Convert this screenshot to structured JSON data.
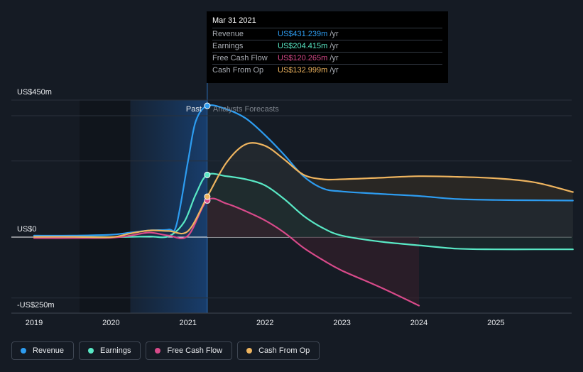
{
  "chart_data": {
    "type": "line",
    "title": "",
    "y_unit": "US$m",
    "ylim": [
      -250,
      450
    ],
    "xlim": [
      2019.0,
      2026.0
    ],
    "y_tick_labels": [
      {
        "value": 450,
        "label": "US$450m"
      },
      {
        "value": 0,
        "label": "US$0"
      },
      {
        "value": -250,
        "label": "-US$250m"
      }
    ],
    "x_ticks": [
      2019,
      2020,
      2021,
      2022,
      2023,
      2024,
      2025
    ],
    "past_region": {
      "start": 2020.25,
      "end": 2021.25
    },
    "past_label": "Past",
    "forecast_label": "Analysts Forecasts",
    "grid": true,
    "legend_position": "bottom",
    "series": [
      {
        "name": "Revenue",
        "color": "#2d9cf0",
        "points": [
          [
            2019.0,
            5
          ],
          [
            2019.5,
            5
          ],
          [
            2020.0,
            8
          ],
          [
            2020.25,
            15
          ],
          [
            2020.5,
            22
          ],
          [
            2020.75,
            25
          ],
          [
            2020.85,
            40
          ],
          [
            2021.0,
            250
          ],
          [
            2021.1,
            380
          ],
          [
            2021.25,
            431.239
          ],
          [
            2021.5,
            420
          ],
          [
            2021.75,
            390
          ],
          [
            2022.0,
            335
          ],
          [
            2022.25,
            270
          ],
          [
            2022.5,
            200
          ],
          [
            2022.75,
            160
          ],
          [
            2023.0,
            150
          ],
          [
            2023.5,
            142
          ],
          [
            2024.0,
            135
          ],
          [
            2024.5,
            125
          ],
          [
            2025.0,
            122
          ],
          [
            2025.5,
            121
          ],
          [
            2026.0,
            120
          ]
        ]
      },
      {
        "name": "Earnings",
        "color": "#59e8c5",
        "points": [
          [
            2019.0,
            1
          ],
          [
            2019.5,
            1
          ],
          [
            2020.0,
            0
          ],
          [
            2020.25,
            1
          ],
          [
            2020.5,
            2
          ],
          [
            2020.75,
            3
          ],
          [
            2020.95,
            50
          ],
          [
            2021.1,
            140
          ],
          [
            2021.25,
            204.415
          ],
          [
            2021.5,
            200
          ],
          [
            2021.75,
            190
          ],
          [
            2022.0,
            170
          ],
          [
            2022.25,
            125
          ],
          [
            2022.5,
            70
          ],
          [
            2022.75,
            30
          ],
          [
            2023.0,
            5
          ],
          [
            2023.5,
            -15
          ],
          [
            2024.0,
            -27
          ],
          [
            2024.5,
            -38
          ],
          [
            2025.0,
            -40
          ],
          [
            2025.5,
            -40
          ],
          [
            2026.0,
            -40
          ]
        ]
      },
      {
        "name": "Free Cash Flow",
        "color": "#d84a8a",
        "points": [
          [
            2019.0,
            -3
          ],
          [
            2019.5,
            -3
          ],
          [
            2020.0,
            -2
          ],
          [
            2020.25,
            5
          ],
          [
            2020.5,
            15
          ],
          [
            2020.75,
            5
          ],
          [
            2021.0,
            5
          ],
          [
            2021.25,
            120.265
          ],
          [
            2021.5,
            110
          ],
          [
            2021.75,
            85
          ],
          [
            2022.0,
            55
          ],
          [
            2022.25,
            15
          ],
          [
            2022.5,
            -35
          ],
          [
            2022.75,
            -75
          ],
          [
            2023.0,
            -110
          ],
          [
            2023.5,
            -165
          ],
          [
            2024.0,
            -225
          ]
        ]
      },
      {
        "name": "Cash From Op",
        "color": "#eeb45f",
        "points": [
          [
            2019.0,
            1
          ],
          [
            2019.5,
            1
          ],
          [
            2020.0,
            0
          ],
          [
            2020.25,
            12
          ],
          [
            2020.5,
            22
          ],
          [
            2020.75,
            20
          ],
          [
            2021.0,
            20
          ],
          [
            2021.25,
            132.999
          ],
          [
            2021.5,
            245
          ],
          [
            2021.75,
            305
          ],
          [
            2022.0,
            300
          ],
          [
            2022.25,
            255
          ],
          [
            2022.5,
            205
          ],
          [
            2022.75,
            190
          ],
          [
            2023.0,
            190
          ],
          [
            2023.5,
            195
          ],
          [
            2024.0,
            200
          ],
          [
            2024.5,
            198
          ],
          [
            2025.0,
            193
          ],
          [
            2025.5,
            180
          ],
          [
            2026.0,
            148
          ]
        ]
      }
    ]
  },
  "tooltip": {
    "date": "Mar 31 2021",
    "rows": [
      {
        "label": "Revenue",
        "value": "US$431.239m",
        "unit": "/yr",
        "color": "#2d9cf0"
      },
      {
        "label": "Earnings",
        "value": "US$204.415m",
        "unit": "/yr",
        "color": "#59e8c5"
      },
      {
        "label": "Free Cash Flow",
        "value": "US$120.265m",
        "unit": "/yr",
        "color": "#d84a8a"
      },
      {
        "label": "Cash From Op",
        "value": "US$132.999m",
        "unit": "/yr",
        "color": "#eeb45f"
      }
    ]
  },
  "legend": [
    {
      "label": "Revenue",
      "color": "#2d9cf0"
    },
    {
      "label": "Earnings",
      "color": "#59e8c5"
    },
    {
      "label": "Free Cash Flow",
      "color": "#d84a8a"
    },
    {
      "label": "Cash From Op",
      "color": "#eeb45f"
    }
  ]
}
